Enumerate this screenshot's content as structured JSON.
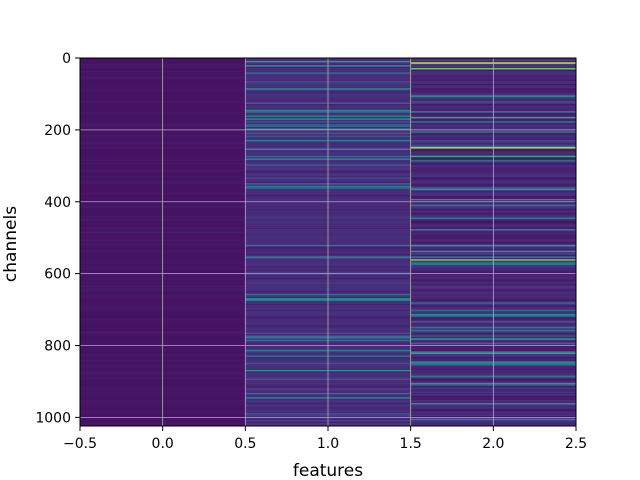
{
  "chart_data": {
    "type": "heatmap",
    "title": "",
    "xlabel": "features",
    "ylabel": "channels",
    "xlim": [
      -0.5,
      2.5
    ],
    "ylim": [
      1024,
      0
    ],
    "x_ticks": [
      -0.5,
      0.0,
      0.5,
      1.0,
      1.5,
      2.0,
      2.5
    ],
    "x_tick_labels": [
      "−0.5",
      "0.0",
      "0.5",
      "1.0",
      "1.5",
      "2.0",
      "2.5"
    ],
    "y_ticks": [
      0,
      200,
      400,
      600,
      800,
      1000
    ],
    "y_tick_labels": [
      "0",
      "200",
      "400",
      "600",
      "800",
      "1000"
    ],
    "grid": true,
    "colormap": "viridis",
    "columns": [
      {
        "feature": 0,
        "mean_level": 0.05,
        "variation": 0.03
      },
      {
        "feature": 1,
        "mean_level": 0.12,
        "variation": 0.45
      },
      {
        "feature": 2,
        "mean_level": 0.1,
        "variation": 0.6
      }
    ],
    "highlights": [
      {
        "feature": 1,
        "channel": 10,
        "value": 0.55
      },
      {
        "feature": 1,
        "channel": 22,
        "value": 0.5
      },
      {
        "feature": 1,
        "channel": 145,
        "value": 0.45
      },
      {
        "feature": 1,
        "channel": 170,
        "value": 0.5
      },
      {
        "feature": 1,
        "channel": 255,
        "value": 0.5
      },
      {
        "feature": 1,
        "channel": 280,
        "value": 0.45
      },
      {
        "feature": 1,
        "channel": 555,
        "value": 0.45
      },
      {
        "feature": 1,
        "channel": 675,
        "value": 0.45
      },
      {
        "feature": 1,
        "channel": 870,
        "value": 0.5
      },
      {
        "feature": 1,
        "channel": 945,
        "value": 0.45
      },
      {
        "feature": 2,
        "channel": 12,
        "value": 0.95
      },
      {
        "feature": 2,
        "channel": 28,
        "value": 0.75
      },
      {
        "feature": 2,
        "channel": 165,
        "value": 0.6
      },
      {
        "feature": 2,
        "channel": 250,
        "value": 0.9
      },
      {
        "feature": 2,
        "channel": 275,
        "value": 0.65
      },
      {
        "feature": 2,
        "channel": 560,
        "value": 0.8
      },
      {
        "feature": 2,
        "channel": 780,
        "value": 0.55
      },
      {
        "feature": 2,
        "channel": 820,
        "value": 0.6
      },
      {
        "feature": 2,
        "channel": 905,
        "value": 0.55
      },
      {
        "feature": 2,
        "channel": 960,
        "value": 0.5
      }
    ]
  }
}
